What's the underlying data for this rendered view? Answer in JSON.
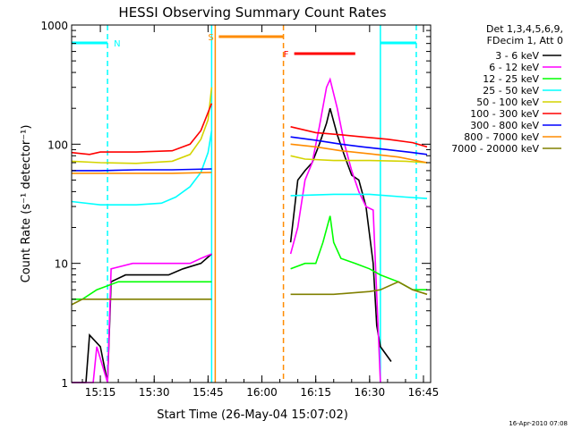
{
  "chart_data": {
    "type": "line",
    "title": "HESSI Observing Summary Count Rates",
    "xlabel": "Start Time (26-May-04 15:07:02)",
    "ylabel": "Count Rate (s⁻¹ detector⁻¹)",
    "y_scale": "log",
    "ylim": [
      1,
      1000
    ],
    "xlim": [
      "15:07",
      "16:47"
    ],
    "x_ticks": [
      "15:15",
      "15:30",
      "15:45",
      "16:00",
      "16:15",
      "16:30",
      "16:45"
    ],
    "y_ticks": [
      "1",
      "10",
      "100",
      "1000"
    ],
    "legend": {
      "placement": "right",
      "header": [
        "Det 1,3,4,5,6,9,",
        "FDecim 1, Att 0"
      ],
      "entries": [
        {
          "label": "3 - 6 keV",
          "color": "#000000"
        },
        {
          "label": "6 - 12 keV",
          "color": "#ff00ff"
        },
        {
          "label": "12 - 25 keV",
          "color": "#00ff00"
        },
        {
          "label": "25 - 50 keV",
          "color": "#00ffff"
        },
        {
          "label": "50 - 100 keV",
          "color": "#d4d400"
        },
        {
          "label": "100 - 300 keV",
          "color": "#ff0000"
        },
        {
          "label": "300 - 800 keV",
          "color": "#0000ff"
        },
        {
          "label": "800 - 7000 keV",
          "color": "#ff8c00"
        },
        {
          "label": "7000 - 20000 keV",
          "color": "#808000"
        }
      ]
    },
    "flags": [
      {
        "label": "N",
        "color": "#00ffff",
        "ranges": [
          [
            "15:07",
            "15:17"
          ],
          [
            "16:33",
            "16:43"
          ]
        ]
      },
      {
        "label": "S",
        "color": "#ff8c00",
        "ranges": [
          [
            "15:48",
            "16:06"
          ]
        ]
      },
      {
        "label": "F",
        "color": "#ff0000",
        "ranges": [
          [
            "16:09",
            "16:26"
          ]
        ]
      }
    ],
    "vertical_lines": [
      {
        "time": "15:17",
        "color": "#00ffff",
        "style": "dashed"
      },
      {
        "time": "15:46",
        "color": "#00ffff",
        "style": "solid"
      },
      {
        "time": "15:47",
        "color": "#ff8c00",
        "style": "solid"
      },
      {
        "time": "16:06",
        "color": "#ff8c00",
        "style": "dashed"
      },
      {
        "time": "16:33",
        "color": "#00ffff",
        "style": "solid"
      },
      {
        "time": "16:43",
        "color": "#00ffff",
        "style": "dashed"
      }
    ],
    "series": [
      {
        "name": "3 - 6 keV",
        "color": "#000000",
        "segments": [
          [
            [
              "15:07",
              1
            ],
            [
              "15:11",
              1
            ],
            [
              "15:12",
              2.5
            ],
            [
              "15:15",
              2
            ],
            [
              "15:17",
              1
            ],
            [
              "15:18",
              7
            ],
            [
              "15:22",
              8
            ],
            [
              "15:28",
              8
            ],
            [
              "15:34",
              8
            ],
            [
              "15:38",
              9
            ],
            [
              "15:43",
              10
            ],
            [
              "15:46",
              12
            ]
          ],
          [
            [
              "16:08",
              15
            ],
            [
              "16:10",
              50
            ],
            [
              "16:12",
              60
            ],
            [
              "16:14",
              70
            ],
            [
              "16:16",
              100
            ],
            [
              "16:18",
              150
            ],
            [
              "16:19",
              200
            ],
            [
              "16:21",
              120
            ],
            [
              "16:23",
              80
            ],
            [
              "16:25",
              55
            ],
            [
              "16:27",
              50
            ],
            [
              "16:29",
              30
            ],
            [
              "16:31",
              10
            ],
            [
              "16:32",
              3
            ],
            [
              "16:33",
              2
            ],
            [
              "16:36",
              1.5
            ]
          ]
        ]
      },
      {
        "name": "6 - 12 keV",
        "color": "#ff00ff",
        "segments": [
          [
            [
              "15:07",
              1
            ],
            [
              "15:13",
              1
            ],
            [
              "15:14",
              2
            ],
            [
              "15:17",
              1
            ],
            [
              "15:18",
              9
            ],
            [
              "15:24",
              10
            ],
            [
              "15:30",
              10
            ],
            [
              "15:36",
              10
            ],
            [
              "15:40",
              10
            ],
            [
              "15:43",
              11
            ],
            [
              "15:46",
              12
            ]
          ],
          [
            [
              "16:08",
              12
            ],
            [
              "16:10",
              20
            ],
            [
              "16:12",
              50
            ],
            [
              "16:14",
              70
            ],
            [
              "16:16",
              140
            ],
            [
              "16:18",
              300
            ],
            [
              "16:19",
              350
            ],
            [
              "16:21",
              200
            ],
            [
              "16:23",
              100
            ],
            [
              "16:25",
              60
            ],
            [
              "16:27",
              40
            ],
            [
              "16:29",
              30
            ],
            [
              "16:31",
              28
            ],
            [
              "16:33",
              1
            ]
          ]
        ]
      },
      {
        "name": "12 - 25 keV",
        "color": "#00ff00",
        "segments": [
          [
            [
              "15:07",
              5
            ],
            [
              "15:10",
              5
            ],
            [
              "15:14",
              6
            ],
            [
              "15:20",
              7
            ],
            [
              "15:30",
              7
            ],
            [
              "15:40",
              7
            ],
            [
              "15:46",
              7
            ]
          ],
          [
            [
              "16:08",
              9
            ],
            [
              "16:12",
              10
            ],
            [
              "16:15",
              10
            ],
            [
              "16:17",
              15
            ],
            [
              "16:19",
              25
            ],
            [
              "16:20",
              15
            ],
            [
              "16:22",
              11
            ],
            [
              "16:26",
              10
            ],
            [
              "16:30",
              9
            ],
            [
              "16:33",
              8
            ],
            [
              "16:38",
              7
            ],
            [
              "16:42",
              6
            ],
            [
              "16:46",
              6
            ]
          ]
        ]
      },
      {
        "name": "25 - 50 keV",
        "color": "#00ffff",
        "segments": [
          [
            [
              "15:07",
              33
            ],
            [
              "15:15",
              31
            ],
            [
              "15:25",
              31
            ],
            [
              "15:32",
              32
            ],
            [
              "15:36",
              36
            ],
            [
              "15:40",
              44
            ],
            [
              "15:43",
              58
            ],
            [
              "15:45",
              85
            ],
            [
              "15:46",
              130
            ]
          ],
          [
            [
              "16:08",
              37
            ],
            [
              "16:20",
              38
            ],
            [
              "16:30",
              38
            ],
            [
              "16:40",
              36
            ],
            [
              "16:46",
              35
            ]
          ]
        ]
      },
      {
        "name": "50 - 100 keV",
        "color": "#d4d400",
        "segments": [
          [
            [
              "15:07",
              72
            ],
            [
              "15:15",
              70
            ],
            [
              "15:25",
              69
            ],
            [
              "15:35",
              72
            ],
            [
              "15:40",
              82
            ],
            [
              "15:43",
              110
            ],
            [
              "15:45",
              160
            ],
            [
              "15:46",
              300
            ]
          ],
          [
            [
              "16:08",
              80
            ],
            [
              "16:12",
              75
            ],
            [
              "16:20",
              73
            ],
            [
              "16:30",
              73
            ],
            [
              "16:40",
              72
            ],
            [
              "16:46",
              70
            ]
          ]
        ]
      },
      {
        "name": "100 - 300 keV",
        "color": "#ff0000",
        "segments": [
          [
            [
              "15:07",
              85
            ],
            [
              "15:12",
              82
            ],
            [
              "15:15",
              86
            ],
            [
              "15:25",
              86
            ],
            [
              "15:35",
              88
            ],
            [
              "15:40",
              100
            ],
            [
              "15:43",
              130
            ],
            [
              "15:46",
              220
            ]
          ],
          [
            [
              "16:08",
              140
            ],
            [
              "16:15",
              125
            ],
            [
              "16:22",
              120
            ],
            [
              "16:28",
              115
            ],
            [
              "16:35",
              110
            ],
            [
              "16:42",
              103
            ],
            [
              "16:46",
              95
            ]
          ]
        ]
      },
      {
        "name": "300 - 800 keV",
        "color": "#0000ff",
        "segments": [
          [
            [
              "15:07",
              60
            ],
            [
              "15:15",
              60
            ],
            [
              "15:25",
              61
            ],
            [
              "15:35",
              61
            ],
            [
              "15:46",
              62
            ]
          ],
          [
            [
              "16:08",
              115
            ],
            [
              "16:15",
              108
            ],
            [
              "16:22",
              100
            ],
            [
              "16:28",
              95
            ],
            [
              "16:35",
              90
            ],
            [
              "16:42",
              85
            ],
            [
              "16:46",
              82
            ]
          ]
        ]
      },
      {
        "name": "800 - 7000 keV",
        "color": "#ff8c00",
        "segments": [
          [
            [
              "15:07",
              57
            ],
            [
              "15:15",
              57
            ],
            [
              "15:25",
              57
            ],
            [
              "15:35",
              57
            ],
            [
              "15:46",
              58
            ]
          ],
          [
            [
              "16:08",
              100
            ],
            [
              "16:15",
              95
            ],
            [
              "16:22",
              88
            ],
            [
              "16:30",
              83
            ],
            [
              "16:38",
              78
            ],
            [
              "16:46",
              70
            ]
          ]
        ]
      },
      {
        "name": "7000 - 20000 keV",
        "color": "#808000",
        "segments": [
          [
            [
              "15:07",
              4.5
            ],
            [
              "15:10",
              5
            ],
            [
              "15:15",
              5
            ],
            [
              "15:20",
              5
            ],
            [
              "15:30",
              5
            ],
            [
              "15:40",
              5
            ],
            [
              "15:46",
              5
            ]
          ],
          [
            [
              "16:08",
              5.5
            ],
            [
              "16:12",
              5.5
            ],
            [
              "16:20",
              5.5
            ],
            [
              "16:30",
              5.8
            ],
            [
              "16:33",
              6
            ],
            [
              "16:38",
              7
            ],
            [
              "16:42",
              6
            ],
            [
              "16:46",
              5.5
            ]
          ]
        ]
      }
    ],
    "footer_timestamp": "16-Apr-2010 07:08"
  }
}
